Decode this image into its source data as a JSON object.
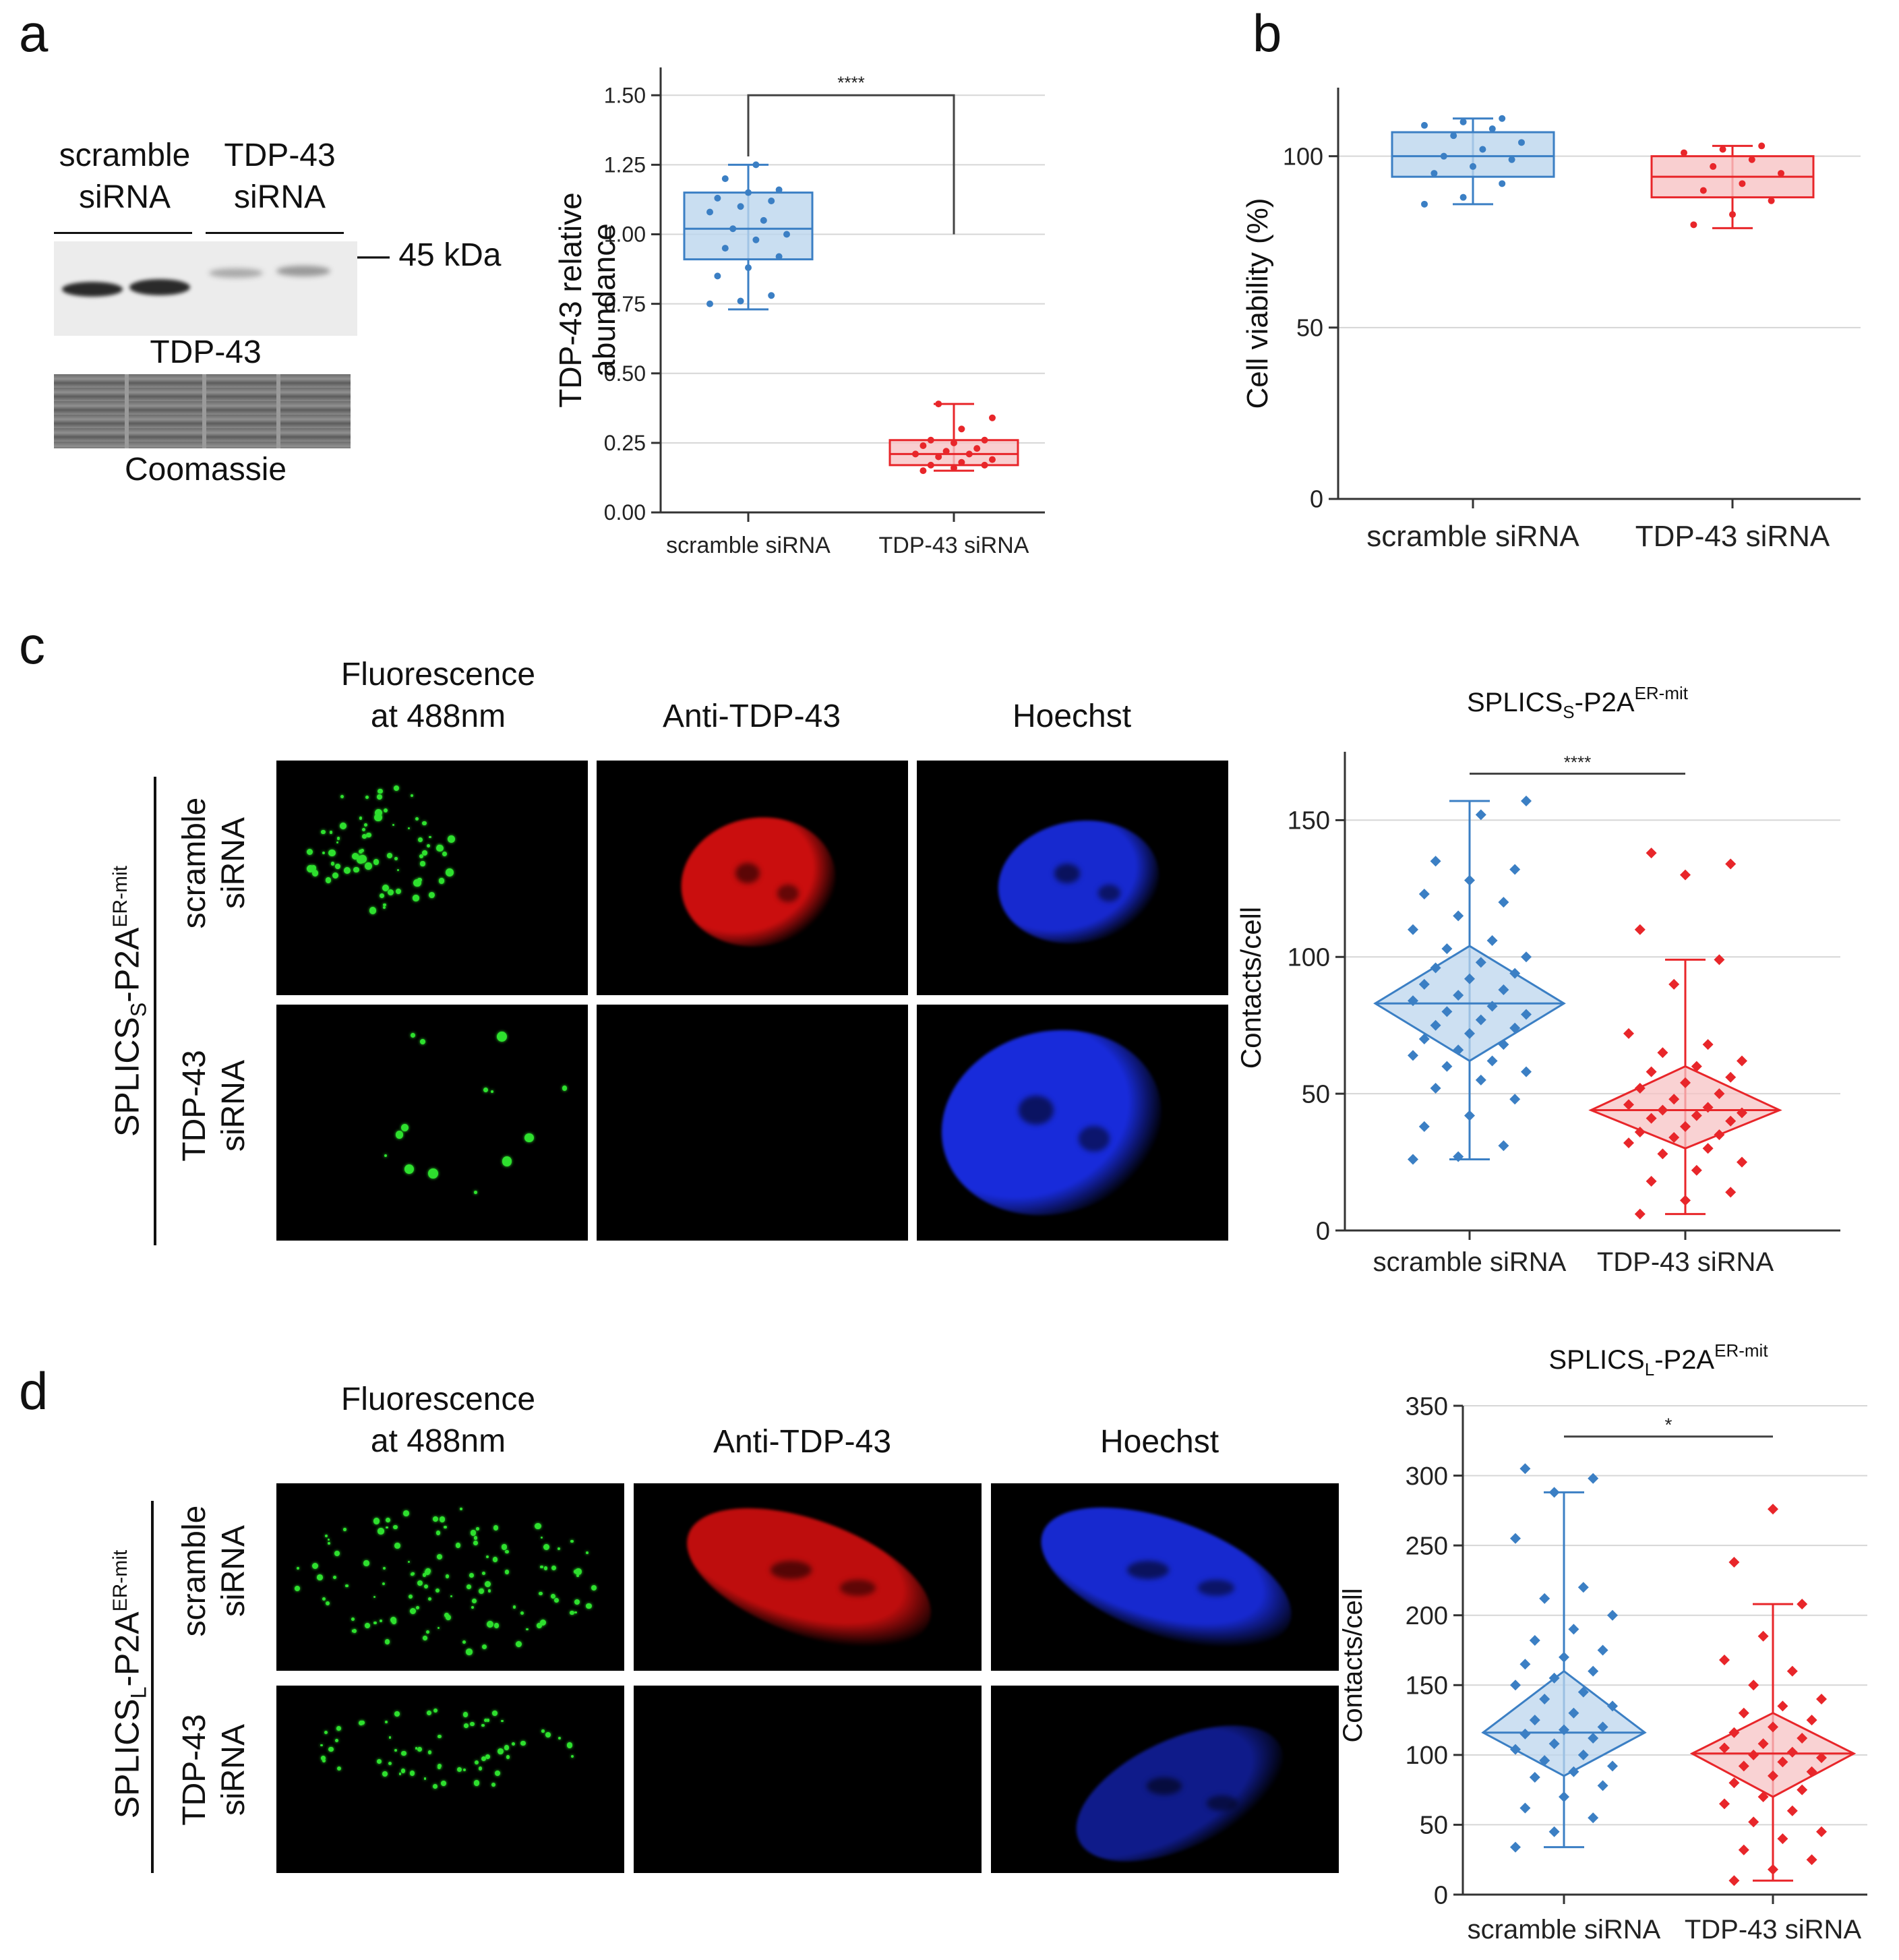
{
  "panels": {
    "a": "a",
    "b": "b",
    "c": "c",
    "d": "d"
  },
  "blot": {
    "lane_label_1": [
      "scramble",
      "siRNA"
    ],
    "lane_label_2": [
      "TDP-43",
      "siRNA"
    ],
    "marker": "— 45 kDa",
    "blot_label": "TDP-43",
    "loading_label": "Coomassie"
  },
  "micro_c": {
    "col_labels": [
      [
        "Fluorescence",
        "at 488nm"
      ],
      [
        "Anti-TDP-43"
      ],
      [
        "Hoechst"
      ]
    ],
    "construct_label_main": "SPLICS",
    "construct_label_sub": "S",
    "construct_label_mid": "-P2A",
    "construct_label_sup": "ER-mit",
    "row_labels": [
      [
        "scramble",
        "siRNA"
      ],
      [
        "TDP-43",
        "siRNA"
      ]
    ]
  },
  "micro_d": {
    "col_labels": [
      [
        "Fluorescence",
        "at 488nm"
      ],
      [
        "Anti-TDP-43"
      ],
      [
        "Hoechst"
      ]
    ],
    "construct_label_main": "SPLICS",
    "construct_label_sub": "L",
    "construct_label_mid": "-P2A",
    "construct_label_sup": "ER-mit",
    "row_labels": [
      [
        "scramble",
        "siRNA"
      ],
      [
        "TDP-43",
        "siRNA"
      ]
    ]
  },
  "colors": {
    "scramble": "#3b7fc4",
    "scramble_fill": "#bcd6ee",
    "tdp": "#e8262a",
    "tdp_fill": "#f7c3c4",
    "green": "#2ee02e",
    "red": "#e01010",
    "blue": "#1a2ee6"
  },
  "chart_data": [
    {
      "id": "a",
      "type": "box",
      "title": "",
      "xlabel": "",
      "ylabel": "TDP-43 relative abundance",
      "ylabel_lines": [
        "TDP-43 relative",
        "abundance"
      ],
      "categories": [
        "scramble siRNA",
        "TDP-43 siRNA"
      ],
      "ylim": [
        0,
        1.6
      ],
      "yticks": [
        "0.00",
        "0.25",
        "0.50",
        "0.75",
        "1.00",
        "1.25",
        "1.50"
      ],
      "ytick_values": [
        0,
        0.25,
        0.5,
        0.75,
        1.0,
        1.25,
        1.5
      ],
      "grid": true,
      "significance": "****",
      "boxes": [
        {
          "name": "scramble siRNA",
          "min": 0.73,
          "q1": 0.91,
          "median": 1.02,
          "q3": 1.15,
          "max": 1.25
        },
        {
          "name": "TDP-43 siRNA",
          "min": 0.15,
          "q1": 0.17,
          "median": 0.21,
          "q3": 0.26,
          "max": 0.39
        }
      ],
      "points": [
        [
          0.75,
          0.76,
          0.78,
          0.85,
          0.88,
          0.92,
          0.95,
          0.98,
          1.0,
          1.02,
          1.05,
          1.08,
          1.1,
          1.12,
          1.13,
          1.15,
          1.16,
          1.2,
          1.25
        ],
        [
          0.15,
          0.16,
          0.17,
          0.17,
          0.18,
          0.19,
          0.2,
          0.21,
          0.21,
          0.22,
          0.23,
          0.24,
          0.25,
          0.26,
          0.26,
          0.3,
          0.34,
          0.39
        ]
      ]
    },
    {
      "id": "b",
      "type": "box",
      "title": "",
      "xlabel": "",
      "ylabel": "Cell viability (%)",
      "categories": [
        "scramble siRNA",
        "TDP-43 siRNA"
      ],
      "ylim": [
        0,
        120
      ],
      "yticks": [
        "0",
        "50",
        "100"
      ],
      "ytick_values": [
        0,
        50,
        100
      ],
      "grid": true,
      "boxes": [
        {
          "name": "scramble siRNA",
          "min": 86,
          "q1": 94,
          "median": 100,
          "q3": 107,
          "max": 111
        },
        {
          "name": "TDP-43 siRNA",
          "min": 79,
          "q1": 88,
          "median": 94,
          "q3": 100,
          "max": 103
        }
      ],
      "points": [
        [
          86,
          88,
          92,
          95,
          97,
          99,
          100,
          102,
          104,
          106,
          108,
          109,
          110,
          111
        ],
        [
          80,
          83,
          87,
          90,
          92,
          95,
          97,
          99,
          101,
          102,
          103
        ]
      ]
    },
    {
      "id": "c",
      "type": "violin",
      "title_main": "SPLICS",
      "title_sub": "S",
      "title_mid": "-P2A",
      "title_sup": "ER-mit",
      "xlabel": "",
      "ylabel": "Contacts/cell",
      "categories": [
        "scramble siRNA",
        "TDP-43 siRNA"
      ],
      "ylim": [
        0,
        175
      ],
      "yticks": [
        "0",
        "50",
        "100",
        "150"
      ],
      "ytick_values": [
        0,
        50,
        100,
        150
      ],
      "grid": true,
      "significance": "****",
      "boxes": [
        {
          "name": "scramble siRNA",
          "min": 26,
          "median": 83,
          "lower": 62,
          "upper": 104,
          "max": 157
        },
        {
          "name": "TDP-43 siRNA",
          "min": 6,
          "median": 44,
          "lower": 30,
          "upper": 60,
          "max": 99
        }
      ],
      "points": [
        [
          26,
          27,
          31,
          38,
          42,
          48,
          52,
          55,
          58,
          60,
          62,
          64,
          66,
          68,
          70,
          72,
          74,
          75,
          77,
          79,
          80,
          82,
          84,
          86,
          88,
          90,
          92,
          94,
          96,
          98,
          100,
          103,
          106,
          110,
          115,
          120,
          123,
          128,
          132,
          135,
          152,
          157
        ],
        [
          6,
          11,
          14,
          18,
          22,
          25,
          28,
          30,
          32,
          34,
          35,
          36,
          38,
          40,
          41,
          42,
          43,
          44,
          45,
          46,
          48,
          50,
          52,
          54,
          56,
          58,
          60,
          62,
          65,
          68,
          72,
          90,
          99,
          110,
          130,
          134,
          138
        ]
      ]
    },
    {
      "id": "d",
      "type": "violin",
      "title_main": "SPLICS",
      "title_sub": "L",
      "title_mid": "-P2A",
      "title_sup": "ER-mit",
      "xlabel": "",
      "ylabel": "Contacts/cell",
      "categories": [
        "scramble siRNA",
        "TDP-43 siRNA"
      ],
      "ylim": [
        0,
        350
      ],
      "yticks": [
        "0",
        "50",
        "100",
        "150",
        "200",
        "250",
        "300",
        "350"
      ],
      "ytick_values": [
        0,
        50,
        100,
        150,
        200,
        250,
        300,
        350
      ],
      "grid": true,
      "significance": "*",
      "boxes": [
        {
          "name": "scramble siRNA",
          "min": 34,
          "median": 116,
          "lower": 85,
          "upper": 160,
          "max": 288
        },
        {
          "name": "TDP-43 siRNA",
          "min": 10,
          "median": 101,
          "lower": 70,
          "upper": 130,
          "max": 208
        }
      ],
      "points": [
        [
          34,
          45,
          55,
          62,
          70,
          78,
          84,
          88,
          92,
          96,
          100,
          104,
          108,
          112,
          115,
          118,
          120,
          125,
          130,
          135,
          140,
          145,
          150,
          155,
          160,
          165,
          170,
          175,
          182,
          190,
          200,
          212,
          220,
          255,
          288,
          298,
          305
        ],
        [
          10,
          18,
          25,
          32,
          40,
          45,
          52,
          60,
          65,
          70,
          75,
          80,
          85,
          88,
          92,
          95,
          98,
          100,
          102,
          105,
          108,
          112,
          116,
          120,
          125,
          130,
          135,
          140,
          150,
          160,
          168,
          185,
          208,
          238,
          276
        ]
      ]
    }
  ]
}
